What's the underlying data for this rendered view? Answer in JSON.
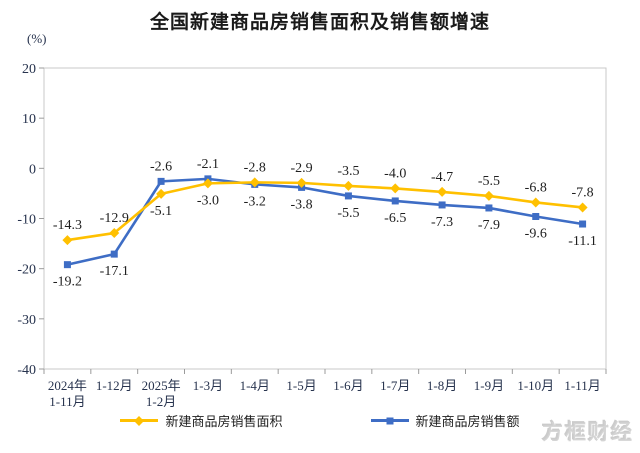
{
  "watermark": "方框财经",
  "colors": {
    "sales_area_series": "#FFC000",
    "sales_amount_series": "#3E6DC5",
    "axis_text": "#27334e",
    "data_label_text": "#1f1f1f",
    "plot_border": "#c9c9c9",
    "tick_mark": "#9b9b9b"
  },
  "chart_data": {
    "type": "line",
    "title": "全国新建商品房销售面积及销售额增速",
    "ylabel": "(%)",
    "xlabel": "",
    "grid": false,
    "legend_position": "bottom",
    "y_axis": {
      "min": -40,
      "max": 20,
      "tick_interval": 10,
      "ticks": [
        20,
        10,
        0,
        -10,
        -20,
        -30,
        -40
      ]
    },
    "categories": [
      "2024年\n1-11月",
      "1-12月",
      "2025年\n1-2月",
      "1-3月",
      "1-4月",
      "1-5月",
      "1-6月",
      "1-7月",
      "1-8月",
      "1-9月",
      "1-10月",
      "1-11月"
    ],
    "series": [
      {
        "name": "新建商品房销售面积",
        "marker": "diamond",
        "color": "#FFC000",
        "values": [
          -14.3,
          -12.9,
          -5.1,
          -3.0,
          -2.8,
          -2.9,
          -3.5,
          -4.0,
          -4.7,
          -5.5,
          -6.8,
          -7.8
        ]
      },
      {
        "name": "新建商品房销售额",
        "marker": "square",
        "color": "#3E6DC5",
        "values": [
          -19.2,
          -17.1,
          -2.6,
          -2.1,
          -3.2,
          -3.8,
          -5.5,
          -6.5,
          -7.3,
          -7.9,
          -9.6,
          -11.1
        ]
      }
    ]
  }
}
